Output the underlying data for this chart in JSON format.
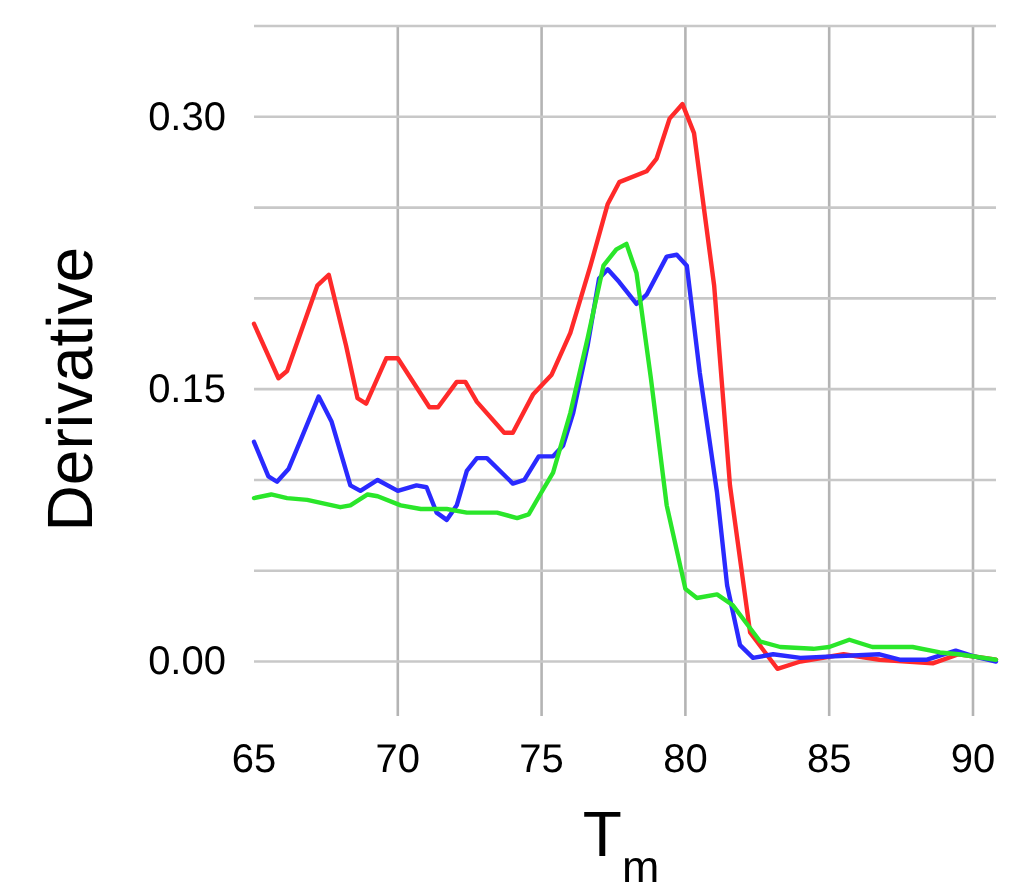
{
  "chart_data": {
    "type": "line",
    "xlabel": "T$_{m}$",
    "ylabel": "Derivative",
    "xlim": [
      65,
      90.8
    ],
    "ylim": [
      -0.03,
      0.35
    ],
    "xticks": [
      65,
      70,
      75,
      80,
      85,
      90
    ],
    "yticks": [
      {
        "value": 0,
        "label": "0.00"
      },
      {
        "value": 0.05,
        "label": null
      },
      {
        "value": 0.1,
        "label": null
      },
      {
        "value": 0.15,
        "label": "0.15"
      },
      {
        "value": 0.2,
        "label": null
      },
      {
        "value": 0.25,
        "label": null
      },
      {
        "value": 0.3,
        "label": "0.30"
      },
      {
        "value": 0.35,
        "label": null
      }
    ],
    "grid": true,
    "marker": "none",
    "line_style": "solid",
    "series": [
      {
        "color": "#ff2a2a",
        "x": [
          65.0,
          65.85,
          66.15,
          67.2,
          67.6,
          68.2,
          68.6,
          68.9,
          69.6,
          70.0,
          71.1,
          71.4,
          72.05,
          72.35,
          72.75,
          73.7,
          74.0,
          74.7,
          75.35,
          76.0,
          76.7,
          77.3,
          77.7,
          78.65,
          79.0,
          79.45,
          79.9,
          80.3,
          81.0,
          81.55,
          82.25,
          83.2,
          84.0,
          85.5,
          86.75,
          88.6,
          89.5,
          90.8
        ],
        "values": [
          0.186,
          0.156,
          0.16,
          0.207,
          0.213,
          0.174,
          0.145,
          0.142,
          0.167,
          0.167,
          0.14,
          0.14,
          0.154,
          0.154,
          0.143,
          0.126,
          0.126,
          0.147,
          0.158,
          0.181,
          0.218,
          0.252,
          0.264,
          0.27,
          0.277,
          0.299,
          0.307,
          0.291,
          0.207,
          0.097,
          0.016,
          -0.004,
          0.0,
          0.004,
          0.001,
          -0.001,
          0.004,
          0.001
        ]
      },
      {
        "color": "#2a2aff",
        "x": [
          65.0,
          65.5,
          65.8,
          66.2,
          66.65,
          67.25,
          67.7,
          68.35,
          68.7,
          69.3,
          70.0,
          70.65,
          71.0,
          71.35,
          71.7,
          72.05,
          72.4,
          72.75,
          73.1,
          74.0,
          74.4,
          74.9,
          75.4,
          75.75,
          76.1,
          76.6,
          77.0,
          77.3,
          77.7,
          78.3,
          78.65,
          79.35,
          79.7,
          80.05,
          80.5,
          81.1,
          81.45,
          81.9,
          82.35,
          83.05,
          84.0,
          86.75,
          87.45,
          88.4,
          89.4,
          90.0,
          90.8
        ],
        "values": [
          0.121,
          0.102,
          0.099,
          0.106,
          0.123,
          0.146,
          0.132,
          0.097,
          0.094,
          0.1,
          0.094,
          0.097,
          0.096,
          0.082,
          0.078,
          0.086,
          0.105,
          0.112,
          0.112,
          0.098,
          0.1,
          0.113,
          0.113,
          0.119,
          0.137,
          0.174,
          0.211,
          0.216,
          0.209,
          0.197,
          0.202,
          0.223,
          0.224,
          0.218,
          0.159,
          0.093,
          0.042,
          0.009,
          0.002,
          0.004,
          0.002,
          0.004,
          0.001,
          0.001,
          0.006,
          0.003,
          0.0
        ]
      },
      {
        "color": "#2ae62a",
        "x": [
          65.0,
          65.6,
          66.15,
          66.85,
          68.0,
          68.35,
          68.95,
          69.3,
          70.1,
          70.8,
          71.7,
          72.4,
          73.45,
          74.15,
          74.55,
          74.95,
          75.4,
          76.0,
          76.6,
          77.15,
          77.6,
          77.95,
          78.3,
          78.8,
          79.35,
          80.0,
          80.4,
          81.1,
          81.65,
          82.6,
          83.3,
          84.45,
          85.0,
          85.7,
          86.5,
          87.9,
          88.85,
          89.5,
          90.8
        ],
        "values": [
          0.09,
          0.092,
          0.09,
          0.089,
          0.085,
          0.086,
          0.092,
          0.091,
          0.086,
          0.084,
          0.084,
          0.082,
          0.082,
          0.079,
          0.081,
          0.092,
          0.104,
          0.137,
          0.178,
          0.218,
          0.227,
          0.23,
          0.214,
          0.156,
          0.086,
          0.04,
          0.035,
          0.037,
          0.031,
          0.011,
          0.008,
          0.007,
          0.008,
          0.012,
          0.008,
          0.008,
          0.005,
          0.004,
          0.001
        ]
      }
    ]
  }
}
